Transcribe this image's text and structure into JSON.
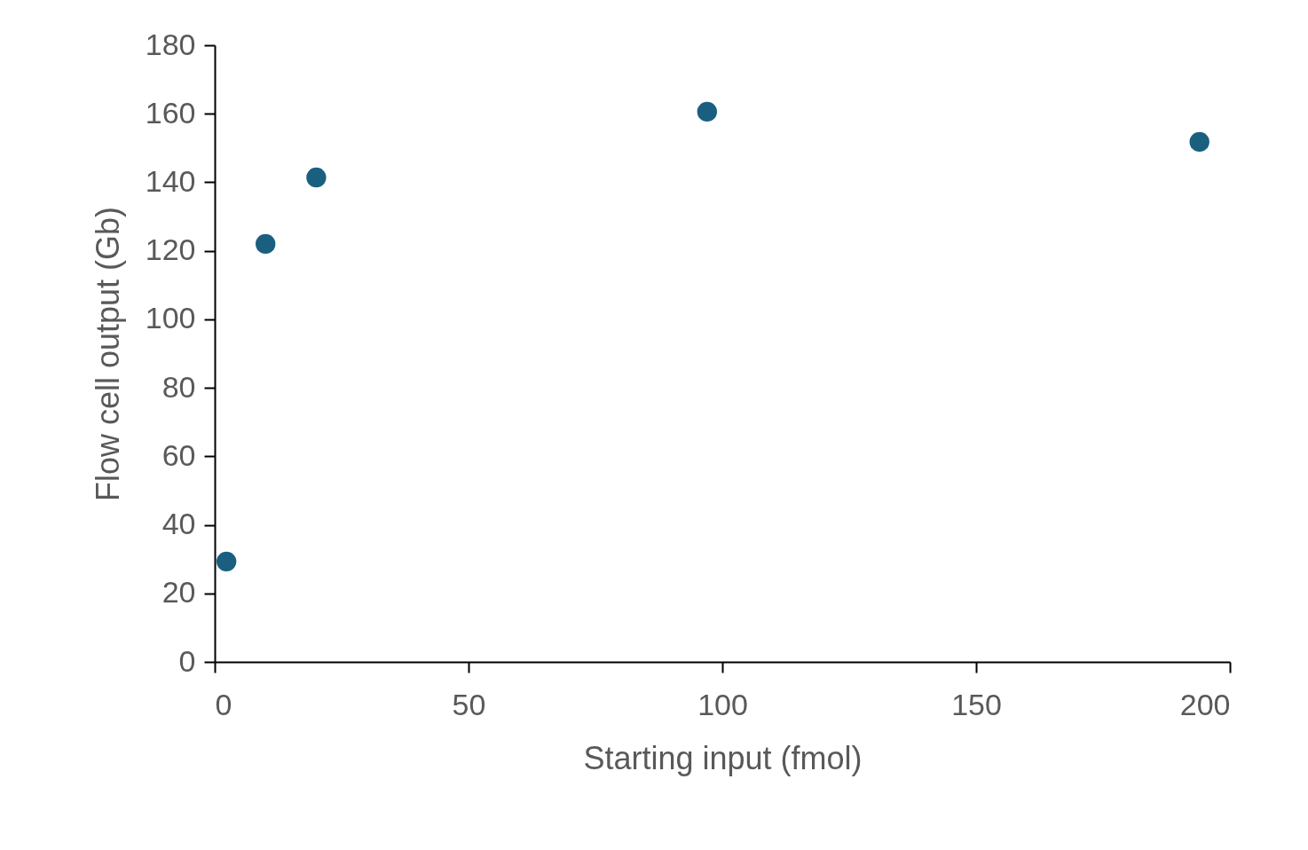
{
  "chart_data": {
    "type": "scatter",
    "xlabel": "Starting input (fmol)",
    "ylabel": "Flow cell output (Gb)",
    "x": [
      2.3,
      10,
      20,
      97,
      194
    ],
    "series": [
      {
        "color": "#1a5f80",
        "values": [
          29.3,
          122,
          141.4,
          160.6,
          151.8
        ]
      }
    ],
    "xlim": [
      0,
      200
    ],
    "xticks": [
      0,
      50,
      100,
      150,
      200
    ],
    "ylim": [
      0,
      180
    ],
    "yticks": [
      0,
      20,
      40,
      60,
      80,
      100,
      120,
      140,
      160,
      180
    ],
    "grid": false,
    "legend": false,
    "marker": "circle"
  }
}
